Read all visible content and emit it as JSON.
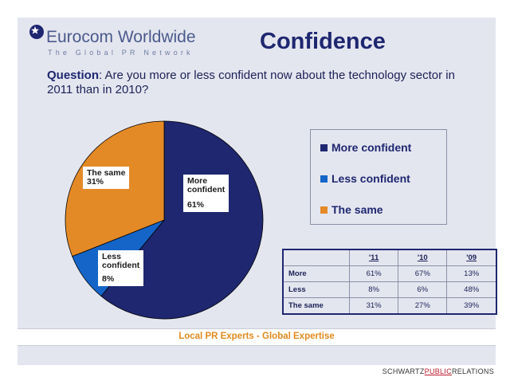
{
  "logo": {
    "name": "Eurocom Worldwide",
    "tagline": "The Global PR Network"
  },
  "title": "Confidence",
  "question": {
    "label": "Question",
    "text": ": Are you more or less confident now about the technology sector in 2011 than in 2010?"
  },
  "colors": {
    "more": "#1e2770",
    "less": "#1565c8",
    "same": "#e38a27",
    "accent": "#e08a1e"
  },
  "chart_data": {
    "type": "pie",
    "slices": [
      {
        "name": "More confident",
        "label_line1": "More",
        "label_line2": "confident",
        "value": 61,
        "value_label": "61%",
        "color": "#1e2770"
      },
      {
        "name": "Less confident",
        "label_line1": "Less",
        "label_line2": "confident",
        "value": 8,
        "value_label": "8%",
        "color": "#1565c8"
      },
      {
        "name": "The same",
        "label_line1": "The same",
        "label_line2": "",
        "value": 31,
        "value_label": "31%",
        "color": "#e38a27"
      }
    ],
    "legend": {
      "position": "right",
      "entries": [
        "More confident",
        "Less confident",
        "The same"
      ]
    }
  },
  "table": {
    "headers": [
      "'11",
      "'10",
      "'09"
    ],
    "rows": [
      {
        "label": "More",
        "values": [
          "61%",
          "67%",
          "13%"
        ]
      },
      {
        "label": "Less",
        "values": [
          "8%",
          "6%",
          "48%"
        ]
      },
      {
        "label": "The same",
        "values": [
          "31%",
          "27%",
          "39%"
        ]
      }
    ]
  },
  "footer": "Local PR Experts - Global Expertise",
  "credit": {
    "left": "SCHWARTZ",
    "middle": "PUBLIC",
    "right": "RELATIONS"
  }
}
